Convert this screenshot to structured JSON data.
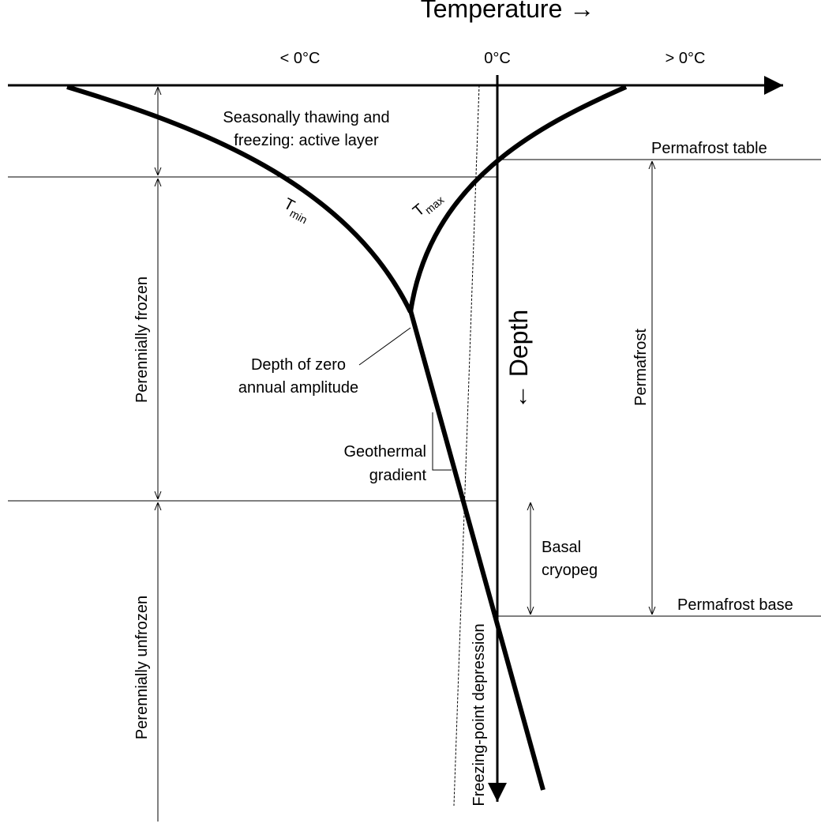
{
  "title": "Temperature →",
  "temperature_labels": [
    "< 0°C",
    "0°C",
    "> 0°C"
  ],
  "active_layer": [
    "Seasonally thawing and",
    "freezing: active layer"
  ],
  "tmin": {
    "symbol": "T",
    "subscript": "min"
  },
  "tmax": {
    "symbol": "T",
    "subscript": "max"
  },
  "depth_axis": "← Depth",
  "zero_amplitude": [
    "Depth of zero",
    "annual amplitude"
  ],
  "geothermal": [
    "Geothermal",
    "gradient"
  ],
  "cryopeg": [
    "Basal",
    "cryopeg"
  ],
  "permafrost_table": "Permafrost table",
  "permafrost_base": "Permafrost base",
  "permafrost": "Permafrost",
  "perennially_frozen": "Perennially frozen",
  "perennially_unfrozen": "Perennially unfrozen",
  "freezing_point_depression": "Freezing-point depression"
}
